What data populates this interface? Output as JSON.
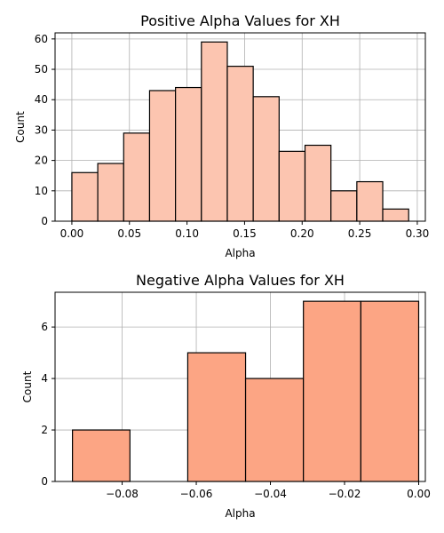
{
  "chart_data": [
    {
      "type": "bar",
      "subtype": "histogram",
      "title": "Positive Alpha Values for XH",
      "xlabel": "Alpha",
      "ylabel": "Count",
      "bin_edges": [
        0.0,
        0.0225,
        0.045,
        0.0675,
        0.09,
        0.1125,
        0.135,
        0.1575,
        0.18,
        0.2025,
        0.225,
        0.2475,
        0.27,
        0.2925
      ],
      "values": [
        16,
        19,
        29,
        43,
        44,
        59,
        51,
        41,
        23,
        25,
        10,
        13,
        4
      ],
      "xlim": [
        -0.0146,
        0.307
      ],
      "ylim": [
        0,
        62
      ],
      "xticks": [
        0.0,
        0.05,
        0.1,
        0.15,
        0.2,
        0.25,
        0.3
      ],
      "xtick_labels": [
        "0.00",
        "0.05",
        "0.10",
        "0.15",
        "0.20",
        "0.25",
        "0.30"
      ],
      "yticks": [
        0,
        10,
        20,
        30,
        40,
        50,
        60
      ],
      "ytick_labels": [
        "0",
        "10",
        "20",
        "30",
        "40",
        "50",
        "60"
      ],
      "bar_color": "#FCC5B0",
      "edge_color": "#000000",
      "grid": true
    },
    {
      "type": "bar",
      "subtype": "histogram",
      "title": "Negative Alpha Values for XH",
      "xlabel": "Alpha",
      "ylabel": "Count",
      "bin_edges": [
        -0.0934,
        -0.0779,
        -0.0623,
        -0.0467,
        -0.0311,
        -0.0156,
        0.0
      ],
      "values": [
        2,
        0,
        5,
        4,
        7,
        7
      ],
      "xlim": [
        -0.0981,
        0.0018
      ],
      "ylim": [
        0,
        7.35
      ],
      "xticks": [
        -0.08,
        -0.06,
        -0.04,
        -0.02,
        0.0
      ],
      "xtick_labels": [
        "−0.08",
        "−0.06",
        "−0.04",
        "−0.02",
        "0.00"
      ],
      "yticks": [
        0,
        2,
        4,
        6
      ],
      "ytick_labels": [
        "0",
        "2",
        "4",
        "6"
      ],
      "bar_color": "#FCA584",
      "edge_color": "#000000",
      "grid": true
    }
  ]
}
